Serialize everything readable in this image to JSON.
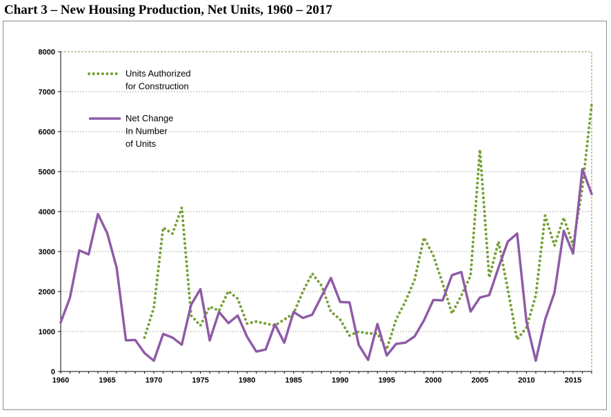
{
  "page": {
    "title": "Chart 3 – New Housing Production, Net Units, 1960 – 2017"
  },
  "chart_data": {
    "type": "line",
    "title": "",
    "xlabel": "",
    "ylabel": "",
    "xlim": [
      1960,
      2017
    ],
    "ylim": [
      0,
      8000
    ],
    "x_ticks": [
      "1960",
      "1965",
      "1970",
      "1975",
      "1980",
      "1985",
      "1990",
      "1995",
      "2000",
      "2005",
      "2010",
      "2015"
    ],
    "y_ticks": [
      "0",
      "1000",
      "2000",
      "3000",
      "4000",
      "5000",
      "6000",
      "7000",
      "8000"
    ],
    "grid": true,
    "legend_position": "top-left",
    "series": [
      {
        "name": "Units Authorized for Construction",
        "legend_lines": [
          "Units Authorized",
          "for Construction"
        ],
        "color": "#76a036",
        "line_style": "dotted",
        "x": [
          1969,
          1970,
          1971,
          1972,
          1973,
          1974,
          1975,
          1976,
          1977,
          1978,
          1979,
          1980,
          1981,
          1982,
          1983,
          1984,
          1985,
          1986,
          1987,
          1988,
          1989,
          1990,
          1991,
          1992,
          1993,
          1994,
          1995,
          1996,
          1997,
          1998,
          1999,
          2000,
          2001,
          2002,
          2003,
          2004,
          2005,
          2006,
          2007,
          2008,
          2009,
          2010,
          2011,
          2012,
          2013,
          2014,
          2015,
          2016,
          2017
        ],
        "values": [
          850,
          1600,
          3600,
          3450,
          4100,
          1400,
          1150,
          1620,
          1520,
          2010,
          1820,
          1200,
          1250,
          1200,
          1150,
          1300,
          1450,
          2000,
          2450,
          2150,
          1500,
          1300,
          900,
          1000,
          950,
          950,
          550,
          1300,
          1750,
          2300,
          3350,
          2900,
          2200,
          1450,
          1900,
          2400,
          5550,
          2350,
          3250,
          2050,
          800,
          1100,
          1900,
          3900,
          3150,
          3850,
          3150,
          4600,
          6700
        ]
      },
      {
        "name": "Net Change In Number of Units",
        "legend_lines": [
          "Net Change",
          "In Number",
          "of Units"
        ],
        "color": "#8e5ba6",
        "line_style": "solid",
        "x": [
          1960,
          1961,
          1962,
          1963,
          1964,
          1965,
          1966,
          1967,
          1968,
          1969,
          1970,
          1971,
          1972,
          1973,
          1974,
          1975,
          1976,
          1977,
          1978,
          1979,
          1980,
          1981,
          1982,
          1983,
          1984,
          1985,
          1986,
          1987,
          1988,
          1989,
          1990,
          1991,
          1992,
          1993,
          1994,
          1995,
          1996,
          1997,
          1998,
          1999,
          2000,
          2001,
          2002,
          2003,
          2004,
          2005,
          2006,
          2007,
          2008,
          2009,
          2010,
          2011,
          2012,
          2013,
          2014,
          2015,
          2016,
          2017
        ],
        "values": [
          1230,
          1850,
          3030,
          2930,
          3940,
          3460,
          2600,
          780,
          790,
          460,
          270,
          940,
          850,
          670,
          1670,
          2060,
          780,
          1490,
          1210,
          1400,
          870,
          500,
          550,
          1180,
          720,
          1490,
          1340,
          1420,
          1880,
          2340,
          1740,
          1730,
          660,
          290,
          1190,
          400,
          690,
          720,
          880,
          1280,
          1790,
          1780,
          2410,
          2490,
          1500,
          1850,
          1910,
          2600,
          3250,
          3450,
          1250,
          270,
          1300,
          1970,
          3520,
          2950,
          5060,
          4440
        ]
      }
    ]
  }
}
